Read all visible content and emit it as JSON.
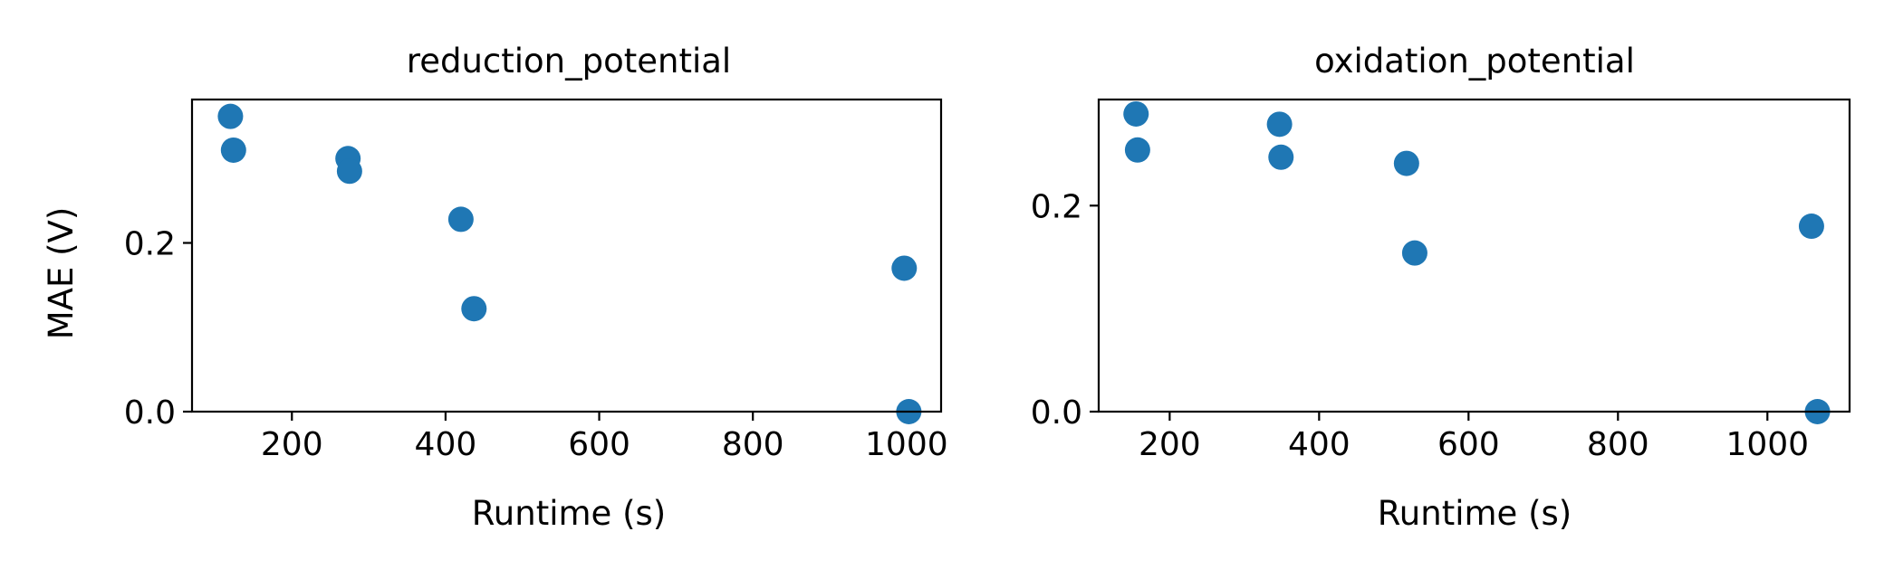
{
  "chart_data": [
    {
      "type": "scatter",
      "title": "reduction_potential",
      "xlabel": "Runtime (s)",
      "ylabel": "MAE (V)",
      "xlim": [
        70,
        1045
      ],
      "ylim": [
        0,
        0.37
      ],
      "xticks": [
        200,
        400,
        600,
        800,
        1000
      ],
      "yticks": [
        0.0,
        0.2
      ],
      "color": "#1f77b4",
      "grid": false,
      "points": [
        {
          "x": 120,
          "y": 0.35
        },
        {
          "x": 124,
          "y": 0.31
        },
        {
          "x": 273,
          "y": 0.3
        },
        {
          "x": 275,
          "y": 0.285
        },
        {
          "x": 420,
          "y": 0.228
        },
        {
          "x": 437,
          "y": 0.122
        },
        {
          "x": 997,
          "y": 0.17
        },
        {
          "x": 1003,
          "y": 0.0
        }
      ]
    },
    {
      "type": "scatter",
      "title": "oxidation_potential",
      "xlabel": "Runtime (s)",
      "ylabel": "",
      "xlim": [
        105,
        1110
      ],
      "ylim": [
        0,
        0.303
      ],
      "xticks": [
        200,
        400,
        600,
        800,
        1000
      ],
      "yticks": [
        0.0,
        0.2
      ],
      "color": "#1f77b4",
      "grid": false,
      "points": [
        {
          "x": 155,
          "y": 0.289
        },
        {
          "x": 157,
          "y": 0.254
        },
        {
          "x": 347,
          "y": 0.279
        },
        {
          "x": 349,
          "y": 0.247
        },
        {
          "x": 517,
          "y": 0.241
        },
        {
          "x": 528,
          "y": 0.154
        },
        {
          "x": 1059,
          "y": 0.18
        },
        {
          "x": 1067,
          "y": 0.0
        }
      ]
    }
  ]
}
